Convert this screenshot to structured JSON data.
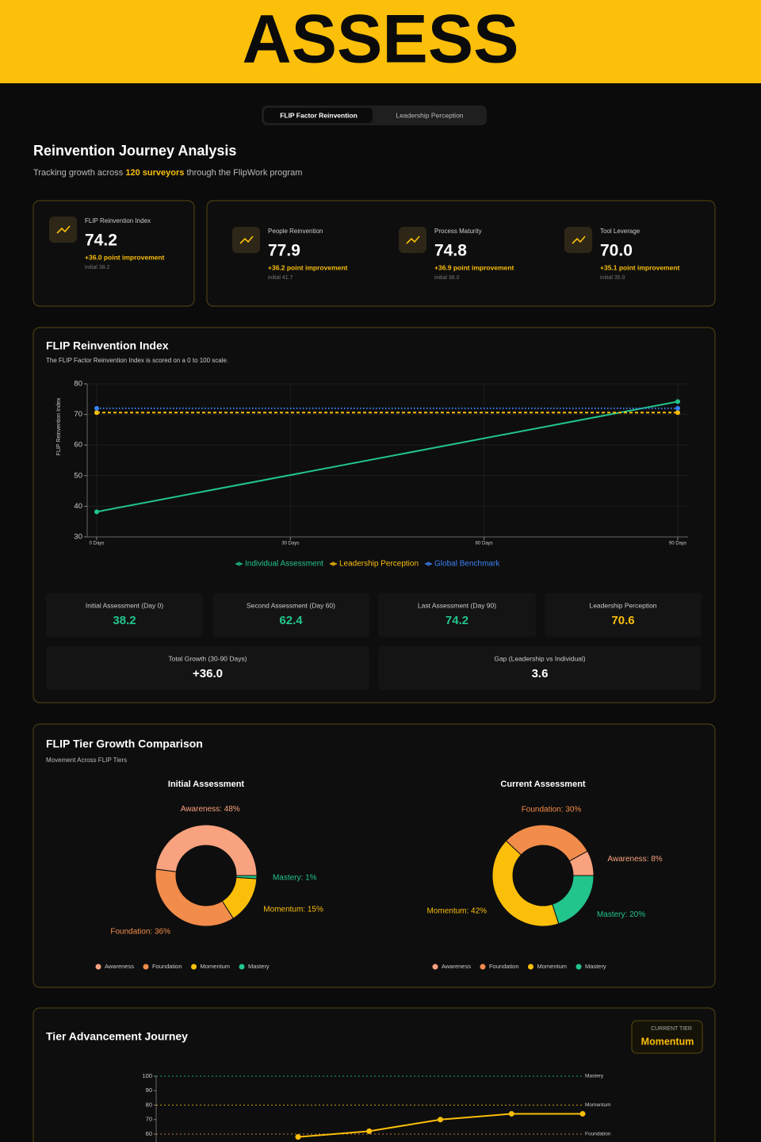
{
  "banner": "ASSESS",
  "tabs": [
    "FLIP Factor Reinvention",
    "Leadership Perception"
  ],
  "header": {
    "title": "Reinvention Journey Analysis",
    "subtitle_before": "Tracking growth across",
    "subtitle_highlight": "120 surveyors",
    "subtitle_after": "through the FlipWork program"
  },
  "kpis": [
    {
      "label": "FLIP Reinvention Index",
      "value": "74.2",
      "change": "+36.0 point improvement",
      "initial": "initial 38.2"
    },
    {
      "label": "People Reinvention",
      "value": "77.9",
      "change": "+36.2 point improvement",
      "initial": "initial 41.7"
    },
    {
      "label": "Process Maturity",
      "value": "74.8",
      "change": "+36.9 point improvement",
      "initial": "initial 38.0"
    },
    {
      "label": "Tool Leverage",
      "value": "70.0",
      "change": "+35.1 point improvement",
      "initial": "initial 35.0"
    }
  ],
  "index_chart": {
    "type": "line",
    "title": "FLIP Reinvention Index",
    "subtitle": "The FLIP Factor Reinvention Index is scored on a 0 to 100 scale.",
    "y_label": "FLIP Reinvention Index",
    "x": [
      0,
      90
    ],
    "xlim": [
      0,
      90
    ],
    "xticks": [
      {
        "value": 0,
        "label": "0 Days"
      },
      {
        "value": 30,
        "label": "30 Days"
      },
      {
        "value": 60,
        "label": "60 Days"
      },
      {
        "value": 90,
        "label": "90 Days"
      }
    ],
    "ylim": [
      30,
      80
    ],
    "yticks": [
      30,
      40,
      50,
      60,
      70,
      80
    ],
    "grid": true,
    "series": [
      {
        "name": "Individual Assessment",
        "color": "#22c58b",
        "line_style": "solid",
        "values": [
          38.2,
          74.2
        ]
      },
      {
        "name": "Leadership Perception",
        "color": "#fbbf0a",
        "line_style": "dashed",
        "values": [
          70.6,
          70.6
        ]
      },
      {
        "name": "Global Benchmark",
        "color": "#3b82f6",
        "line_style": "dotted",
        "values": [
          72,
          72
        ]
      }
    ]
  },
  "stats": [
    {
      "label": "Initial Assessment (Day 0)",
      "value": "38.2",
      "color": "#22c58b"
    },
    {
      "label": "Second Assessment (Day 60)",
      "value": "62.4",
      "color": "#22c58b"
    },
    {
      "label": "Last Assessment (Day 90)",
      "value": "74.2",
      "color": "#22c58b"
    },
    {
      "label": "Leadership Perception",
      "value": "70.6",
      "color": "#fbbf0a"
    },
    {
      "label": "Total Growth (30-90 Days)",
      "value": "+36.0",
      "color": "#ffffff"
    },
    {
      "label": "Gap (Leadership vs Individual)",
      "value": "3.6",
      "color": "#ffffff"
    }
  ],
  "tier_chart": {
    "title": "FLIP Tier Growth Comparison",
    "subtitle": "Movement Across FLIP Tiers",
    "charts": [
      {
        "type": "pie",
        "title": "Initial Assessment",
        "categories": [
          "Awareness",
          "Foundation",
          "Momentum",
          "Mastery"
        ],
        "values": [
          48,
          36,
          15,
          1
        ],
        "value_labels": [
          "Awareness: 48%",
          "Foundation: 36%",
          "Momentum: 15%",
          "Mastery: 1%"
        ],
        "colors": [
          "#f9a27f",
          "#f28c4a",
          "#fbbf0a",
          "#22c58b"
        ]
      },
      {
        "type": "pie",
        "title": "Current Assessment",
        "categories": [
          "Awareness",
          "Foundation",
          "Momentum",
          "Mastery"
        ],
        "values": [
          8,
          30,
          42,
          20
        ],
        "value_labels": [
          "Awareness: 8%",
          "Foundation: 30%",
          "Momentum: 42%",
          "Mastery: 20%"
        ],
        "colors": [
          "#f9a27f",
          "#f28c4a",
          "#fbbf0a",
          "#22c58b"
        ]
      }
    ]
  },
  "journey": {
    "type": "line",
    "title": "Tier Advancement Journey",
    "badge_label": "CURRENT TIER",
    "badge_value": "Momentum",
    "categories": [
      null,
      null,
      null,
      null,
      null
    ],
    "values": [
      58,
      62,
      70,
      74,
      74
    ],
    "color": "#fbbf0a",
    "ylim": [
      0,
      100
    ],
    "yticks": [
      60,
      70,
      80,
      90,
      100
    ],
    "thresholds": [
      {
        "value": 100,
        "label": "Mastery",
        "color": "#22c58b"
      },
      {
        "value": 80,
        "label": "Momentum",
        "color": "#fbbf0a"
      },
      {
        "value": 60,
        "label": "Foundation",
        "color": "#f28c4a"
      }
    ]
  }
}
